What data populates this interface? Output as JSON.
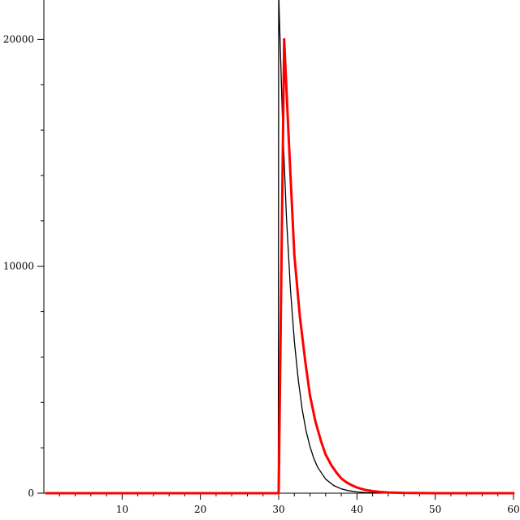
{
  "chart_data": {
    "type": "line",
    "title": "",
    "xlabel": "",
    "ylabel": "",
    "xlim": [
      0,
      60
    ],
    "ylim": [
      0,
      21000
    ],
    "grid": false,
    "x_ticks": [
      {
        "value": 10,
        "label": "10"
      },
      {
        "value": 20,
        "label": "20"
      },
      {
        "value": 30,
        "label": "30"
      },
      {
        "value": 40,
        "label": "40"
      },
      {
        "value": 50,
        "label": "50"
      },
      {
        "value": 60,
        "label": "60"
      }
    ],
    "x_minor_ticks": [
      2,
      4,
      6,
      8,
      12,
      14,
      16,
      18,
      22,
      24,
      26,
      28,
      32,
      34,
      36,
      38,
      42,
      44,
      46,
      48,
      52,
      54,
      56,
      58
    ],
    "y_ticks": [
      {
        "value": 0,
        "label": "0"
      },
      {
        "value": 10000,
        "label": "10000"
      },
      {
        "value": 20000,
        "label": "20000"
      }
    ],
    "y_minor_ticks": [
      2000,
      4000,
      6000,
      8000,
      12000,
      14000,
      16000,
      18000
    ],
    "series": [
      {
        "color": "#000000",
        "stroke": "thin",
        "x": [
          0.5,
          29.9,
          29.95,
          30.0,
          30.5,
          31.0,
          31.5,
          32.0,
          32.5,
          33.0,
          33.5,
          34.0,
          34.5,
          35.0,
          36.0,
          37.0,
          38.0,
          39.0,
          40.0,
          41.0,
          42.0,
          43.0,
          44.0,
          46.0,
          50.0,
          55.0,
          60.0
        ],
        "y": [
          0,
          0,
          0,
          22000,
          16300,
          12100,
          9000,
          6700,
          5000,
          3700,
          2750,
          2050,
          1520,
          1130,
          620,
          345,
          190,
          105,
          58,
          32,
          18,
          10,
          6,
          2,
          0,
          0,
          0
        ]
      },
      {
        "color": "#ff0000",
        "stroke": "thick",
        "x": [
          0.3,
          29.3,
          30.0,
          30.7,
          31.3,
          32.0,
          32.7,
          33.4,
          34.0,
          34.7,
          35.4,
          36.0,
          36.7,
          37.4,
          38.0,
          38.7,
          39.4,
          40.0,
          41.0,
          42.0,
          43.0,
          44.0,
          46.0,
          50.0,
          55.0,
          60.0
        ],
        "y": [
          0,
          0,
          0,
          20000,
          15500,
          10500,
          7800,
          5800,
          4300,
          3150,
          2300,
          1700,
          1250,
          900,
          650,
          470,
          340,
          250,
          150,
          90,
          55,
          33,
          12,
          2,
          0,
          0
        ]
      }
    ]
  }
}
